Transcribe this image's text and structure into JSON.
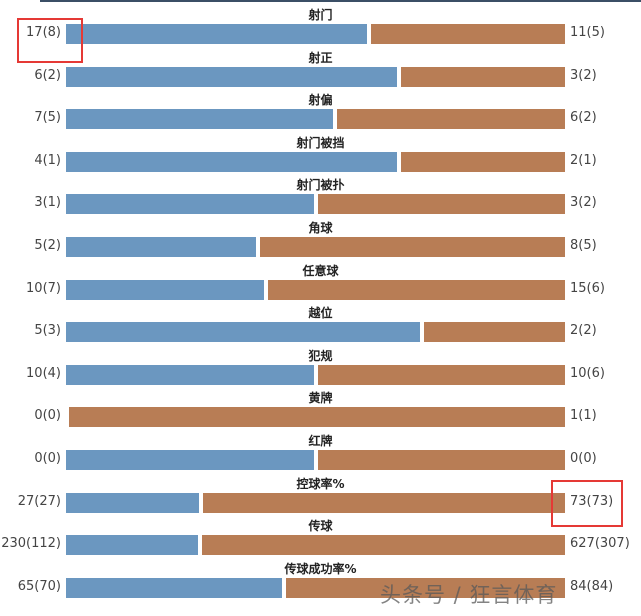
{
  "chart_data": {
    "type": "bar",
    "orientation": "horizontal-diverging-stacked",
    "colors": {
      "left": "#6b97c0",
      "right": "#b87d55"
    },
    "categories": [
      "射门",
      "射正",
      "射偏",
      "射门被挡",
      "射门被扑",
      "角球",
      "任意球",
      "越位",
      "犯规",
      "黄牌",
      "红牌",
      "控球率%",
      "传球",
      "传球成功率%"
    ],
    "left_labels": [
      "17(8)",
      "6(2)",
      "7(5)",
      "4(1)",
      "3(1)",
      "5(2)",
      "10(7)",
      "5(3)",
      "10(4)",
      "0(0)",
      "0(0)",
      "27(27)",
      "230(112)",
      "65(70)"
    ],
    "right_labels": [
      "11(5)",
      "3(2)",
      "6(2)",
      "2(1)",
      "3(2)",
      "8(5)",
      "15(6)",
      "2(2)",
      "10(6)",
      "1(1)",
      "0(0)",
      "73(73)",
      "627(307)",
      "84(84)"
    ],
    "left_values": [
      17,
      6,
      7,
      4,
      3,
      5,
      10,
      5,
      10,
      0,
      0,
      27,
      230,
      65
    ],
    "right_values": [
      11,
      3,
      6,
      2,
      3,
      8,
      15,
      2,
      10,
      1,
      0,
      73,
      627,
      84
    ],
    "highlighted": [
      "17(8)",
      "73(73)"
    ]
  },
  "watermark": "头条号 / 狂言体育"
}
